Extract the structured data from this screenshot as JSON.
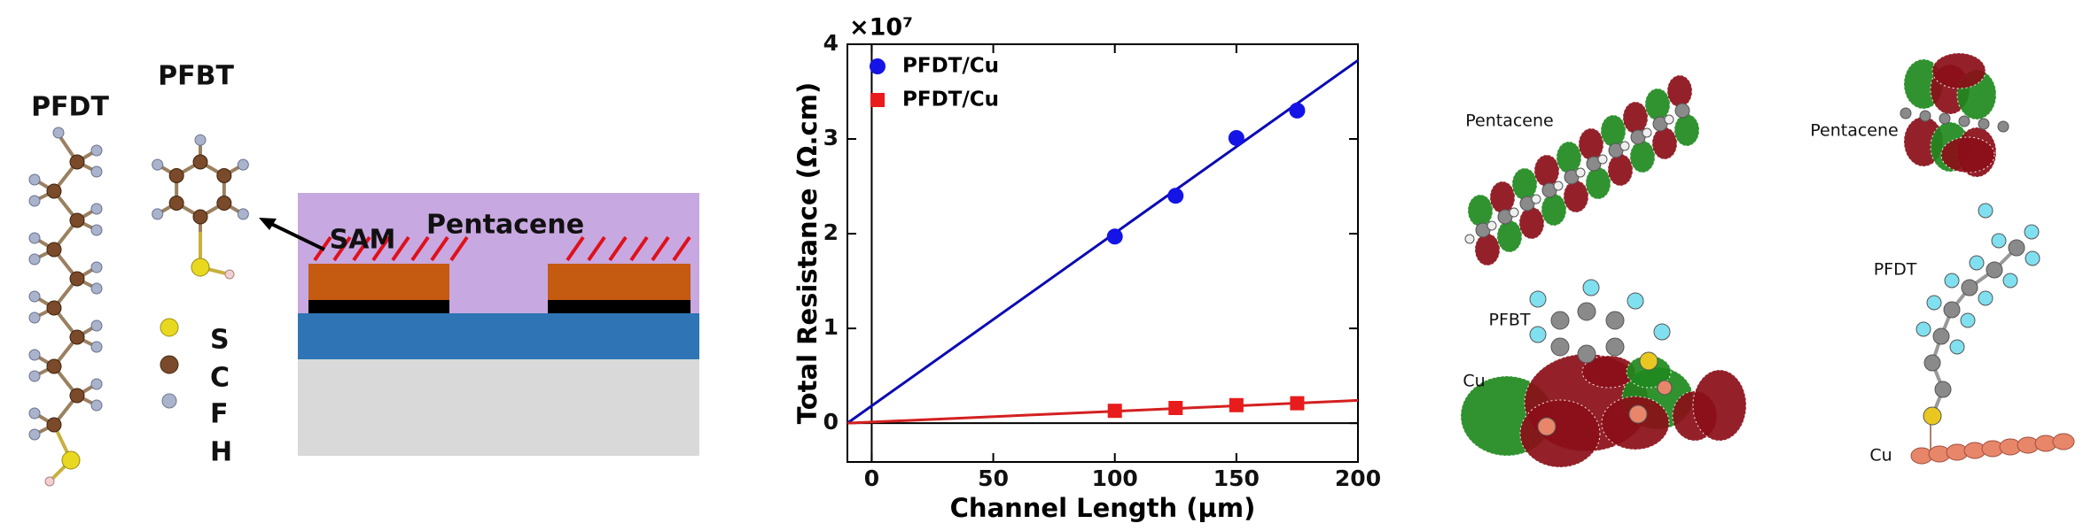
{
  "chart_data": {
    "type": "scatter",
    "y_multiplier": "×10⁷",
    "xlabel": "Channel Length (µm)",
    "ylabel": "Total Resistance (Ω.cm)",
    "xlim": [
      -10,
      200
    ],
    "xticks": [
      0,
      50,
      100,
      150,
      200
    ],
    "ylim": [
      -0.41,
      4
    ],
    "yticks": [
      0,
      1,
      2,
      3,
      4
    ],
    "legend": "upper left",
    "series": [
      {
        "name": "PFDT/Cu",
        "color": "#1414e6",
        "marker": "circle",
        "x": [
          100,
          125,
          150,
          175
        ],
        "values": [
          1.97,
          2.4,
          3.01,
          3.3
        ]
      },
      {
        "name": "PFDT/Cu",
        "color": "#e81c1c",
        "marker": "square",
        "x": [
          100,
          125,
          150,
          175
        ],
        "values": [
          0.13,
          0.16,
          0.19,
          0.21
        ]
      }
    ],
    "fit_lines": [
      {
        "color": "#0a0ab4",
        "x": [
          -10,
          200
        ],
        "values": [
          0,
          3.83
        ]
      },
      {
        "color": "#d42020",
        "x": [
          -10,
          200
        ],
        "values": [
          0,
          0.24
        ]
      }
    ]
  },
  "left_panel": {
    "molecule_labels": [
      "PFDT",
      "PFBT"
    ],
    "atom_legend": [
      "S",
      "C",
      "F",
      "H"
    ],
    "device_labels": [
      "SAM",
      "Pentacene"
    ]
  },
  "right_panel": {
    "left_labels": [
      "Pentacene",
      "PFBT",
      "Cu"
    ],
    "right_labels": [
      "Pentacene",
      "PFDT",
      "Cu"
    ]
  }
}
